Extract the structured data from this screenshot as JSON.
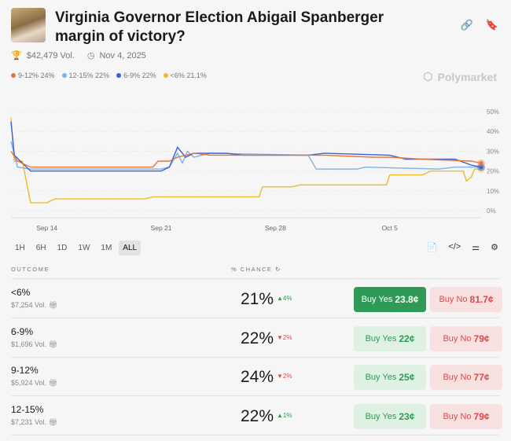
{
  "header": {
    "title": "Virginia Governor Election Abigail Spanberger margin of victory?",
    "volume": "$42,479 Vol.",
    "date": "Nov 4, 2025",
    "brand": "Polymarket"
  },
  "legend": [
    {
      "label": "9-12% 24%",
      "color": "#e4773a"
    },
    {
      "label": "12-15% 22%",
      "color": "#7fb2e8"
    },
    {
      "label": "6-9% 22%",
      "color": "#3b5fd9"
    },
    {
      "label": "<6% 21.1%",
      "color": "#ebbb2a"
    }
  ],
  "time_ranges": [
    "1H",
    "6H",
    "1D",
    "1W",
    "1M",
    "ALL"
  ],
  "table": {
    "outcome_header": "OUTCOME",
    "chance_header": "% CHANCE",
    "rows": [
      {
        "name": "<6%",
        "volume": "$7,254 Vol.",
        "chance": "21%",
        "delta": "▲4%",
        "dir": "up",
        "yes_label": "Buy Yes",
        "yes_price": "23.8¢",
        "no_label": "Buy No",
        "no_price": "81.7¢"
      },
      {
        "name": "6-9%",
        "volume": "$1,696 Vol.",
        "chance": "22%",
        "delta": "▼2%",
        "dir": "dn",
        "yes_label": "Buy Yes",
        "yes_price": "22¢",
        "no_label": "Buy No",
        "no_price": "79¢"
      },
      {
        "name": "9-12%",
        "volume": "$5,924 Vol.",
        "chance": "24%",
        "delta": "▼2%",
        "dir": "dn",
        "yes_label": "Buy Yes",
        "yes_price": "25¢",
        "no_label": "Buy No",
        "no_price": "77¢"
      },
      {
        "name": "12-15%",
        "volume": "$7,231 Vol.",
        "chance": "22%",
        "delta": "▲1%",
        "dir": "up",
        "yes_label": "Buy Yes",
        "yes_price": "23¢",
        "no_label": "Buy No",
        "no_price": "79¢"
      }
    ]
  },
  "chart_data": {
    "type": "line",
    "x_unit": "day (Sep 1 = 1, Oct 1 = 31)",
    "xlim": [
      11.8,
      40.6
    ],
    "ylim": [
      0,
      50
    ],
    "x_ticks": [
      {
        "x": 14,
        "label": "Sep 14"
      },
      {
        "x": 21,
        "label": "Sep 21"
      },
      {
        "x": 28,
        "label": "Sep 28"
      },
      {
        "x": 35,
        "label": "Oct 5"
      }
    ],
    "y_ticks": [
      {
        "y": 0,
        "label": "0%"
      },
      {
        "y": 10,
        "label": "10%"
      },
      {
        "y": 20,
        "label": "20%"
      },
      {
        "y": 30,
        "label": "30%"
      },
      {
        "y": 40,
        "label": "40%"
      },
      {
        "y": 50,
        "label": "50%"
      }
    ],
    "series": [
      {
        "name": "<6%",
        "color": "#ebbb2a",
        "points": [
          [
            11.8,
            47
          ],
          [
            12,
            25
          ],
          [
            12.5,
            25
          ],
          [
            13,
            4
          ],
          [
            14,
            4
          ],
          [
            14.5,
            6
          ],
          [
            20,
            6
          ],
          [
            20.5,
            7
          ],
          [
            27,
            7
          ],
          [
            27.2,
            12
          ],
          [
            29,
            12
          ],
          [
            29.5,
            13
          ],
          [
            34.8,
            13
          ],
          [
            35,
            18
          ],
          [
            37,
            18
          ],
          [
            37.5,
            20
          ],
          [
            39.5,
            20
          ],
          [
            39.7,
            15
          ],
          [
            40,
            17
          ],
          [
            40.2,
            21
          ],
          [
            40.6,
            21.1
          ]
        ]
      },
      {
        "name": "12-15%",
        "color": "#7fb2e8",
        "points": [
          [
            11.8,
            35
          ],
          [
            12.2,
            22
          ],
          [
            13,
            21
          ],
          [
            21,
            21
          ],
          [
            21.5,
            22
          ],
          [
            22,
            29
          ],
          [
            22.3,
            24
          ],
          [
            22.6,
            30
          ],
          [
            23,
            27
          ],
          [
            24,
            29
          ],
          [
            30,
            28
          ],
          [
            30.5,
            21
          ],
          [
            33,
            21
          ],
          [
            33.5,
            22
          ],
          [
            38,
            21
          ],
          [
            39,
            22
          ],
          [
            40.6,
            22
          ]
        ]
      },
      {
        "name": "6-9%",
        "color": "#3b5fd9",
        "points": [
          [
            11.8,
            45
          ],
          [
            12,
            28
          ],
          [
            12.5,
            24
          ],
          [
            13,
            20
          ],
          [
            21,
            20
          ],
          [
            21.5,
            22
          ],
          [
            22,
            32
          ],
          [
            22.5,
            27
          ],
          [
            23,
            29
          ],
          [
            25,
            29
          ],
          [
            26,
            28
          ],
          [
            30,
            28
          ],
          [
            31,
            29
          ],
          [
            35,
            28
          ],
          [
            36,
            26
          ],
          [
            39,
            26
          ],
          [
            40,
            23
          ],
          [
            40.6,
            22
          ]
        ]
      },
      {
        "name": "9-12%",
        "color": "#e4773a",
        "points": [
          [
            11.8,
            30
          ],
          [
            12.2,
            25
          ],
          [
            13,
            22
          ],
          [
            20.5,
            22
          ],
          [
            20.8,
            25
          ],
          [
            21.5,
            25
          ],
          [
            22,
            27
          ],
          [
            23,
            29
          ],
          [
            24,
            28
          ],
          [
            30,
            28
          ],
          [
            31,
            28
          ],
          [
            34,
            27
          ],
          [
            35,
            27
          ],
          [
            37,
            26
          ],
          [
            40,
            25
          ],
          [
            40.6,
            24
          ]
        ]
      }
    ]
  }
}
